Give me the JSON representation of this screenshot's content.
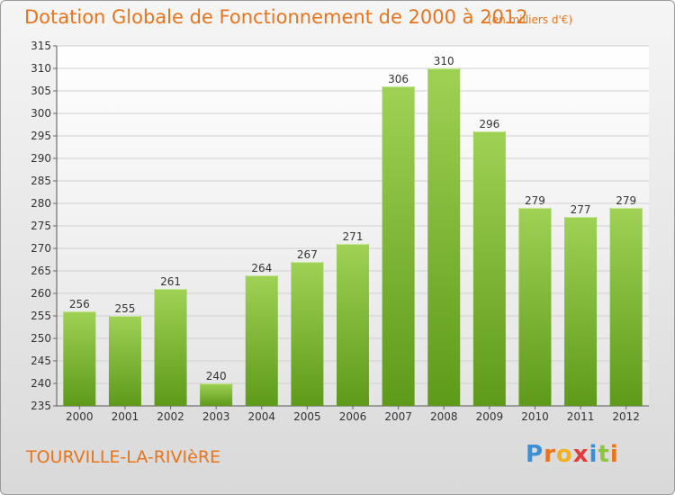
{
  "header": {
    "title": "Dotation Globale de Fonctionnement de 2000 à 2012",
    "unit_note": "(en milliers d'€)"
  },
  "footer": {
    "town": "TOURVILLE-LA-RIVIèRE",
    "brand": "Proxiti"
  },
  "colors": {
    "title": "#e8741c",
    "bar_top": "#9fd155",
    "bar_bottom": "#5e9a1a"
  },
  "chart_data": {
    "type": "bar",
    "title": "Dotation Globale de Fonctionnement de 2000 à 2012",
    "subtitle": "(en milliers d'€)",
    "xlabel": "",
    "ylabel": "",
    "categories": [
      "2000",
      "2001",
      "2002",
      "2003",
      "2004",
      "2005",
      "2006",
      "2007",
      "2008",
      "2009",
      "2010",
      "2011",
      "2012"
    ],
    "values": [
      256,
      255,
      261,
      240,
      264,
      267,
      271,
      306,
      310,
      296,
      279,
      277,
      279
    ],
    "ylim": [
      235,
      315
    ],
    "yticks": [
      235,
      240,
      245,
      250,
      255,
      260,
      265,
      270,
      275,
      280,
      285,
      290,
      295,
      300,
      305,
      310,
      315
    ],
    "grid": true,
    "data_labels": true
  }
}
